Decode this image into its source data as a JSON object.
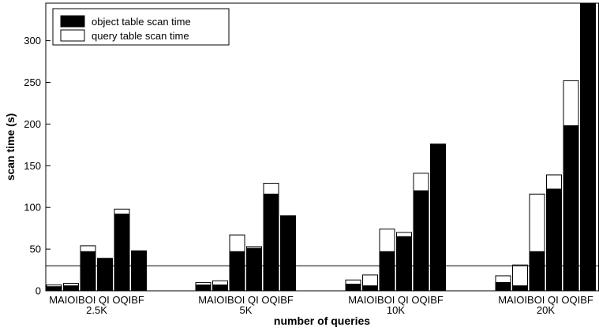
{
  "chart_data": {
    "type": "bar",
    "stacked": true,
    "xlabel": "number of queries",
    "ylabel": "scan time (s)",
    "ylim": [
      0,
      345
    ],
    "yticks": [
      0,
      50,
      100,
      150,
      200,
      250,
      300
    ],
    "groups": [
      "2.5K",
      "5K",
      "10K",
      "20K"
    ],
    "categories": [
      "MA",
      "OIB",
      "OI",
      "QI",
      "OQI",
      "BF"
    ],
    "category_label_rows": [
      "MAIOIBOI QI OQIBF",
      "MAIOIBOI QI OQIBF",
      "MAIOIBOI QI OQIBF",
      "MAIOIBOI QI OQIBF"
    ],
    "series": [
      {
        "name": "object table scan time",
        "color": "#000000",
        "values": [
          [
            5,
            6,
            47,
            39,
            92,
            48
          ],
          [
            7,
            7,
            47,
            51,
            116,
            90
          ],
          [
            8,
            6,
            47,
            65,
            120,
            176
          ],
          [
            10,
            6,
            47,
            122,
            198,
            345
          ]
        ]
      },
      {
        "name": "query table scan time",
        "color": "#ffffff",
        "values": [
          [
            2,
            3,
            7,
            0,
            6,
            0
          ],
          [
            3,
            5,
            20,
            2,
            13,
            0
          ],
          [
            5,
            13,
            27,
            5,
            21,
            0
          ],
          [
            8,
            25,
            69,
            17,
            54,
            0
          ]
        ]
      }
    ],
    "reference_line": 30,
    "legend": {
      "position": "top-left"
    },
    "grid": false
  }
}
